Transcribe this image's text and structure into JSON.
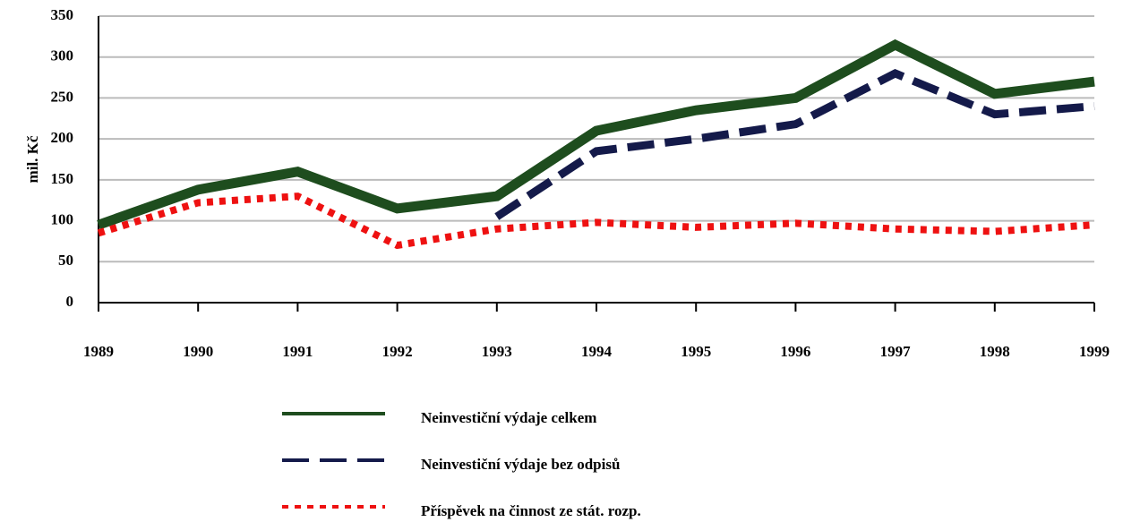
{
  "chart_data": {
    "type": "line",
    "y_label": "mil. Kč",
    "categories": [
      "1989",
      "1990",
      "1991",
      "1992",
      "1993",
      "1994",
      "1995",
      "1996",
      "1997",
      "1998",
      "1999"
    ],
    "series": [
      {
        "name": "Neinvestiční výdaje celkem",
        "color": "#1e4d1e",
        "style": "solid",
        "values": [
          95,
          138,
          160,
          115,
          130,
          210,
          235,
          250,
          315,
          255,
          270
        ]
      },
      {
        "name": "Neinvestiční výdaje bez odpisů",
        "color": "#141a4a",
        "style": "dashed",
        "values": [
          null,
          null,
          null,
          null,
          105,
          185,
          200,
          218,
          280,
          230,
          240
        ]
      },
      {
        "name": "Příspěvek na činnost ze stát. rozp.",
        "color": "#ee1111",
        "style": "dotted",
        "values": [
          85,
          122,
          130,
          70,
          90,
          98,
          92,
          97,
          90,
          87,
          95
        ]
      }
    ],
    "ylim": [
      0,
      350
    ],
    "yticks": [
      0,
      50,
      100,
      150,
      200,
      250,
      300,
      350
    ],
    "grid": true
  }
}
